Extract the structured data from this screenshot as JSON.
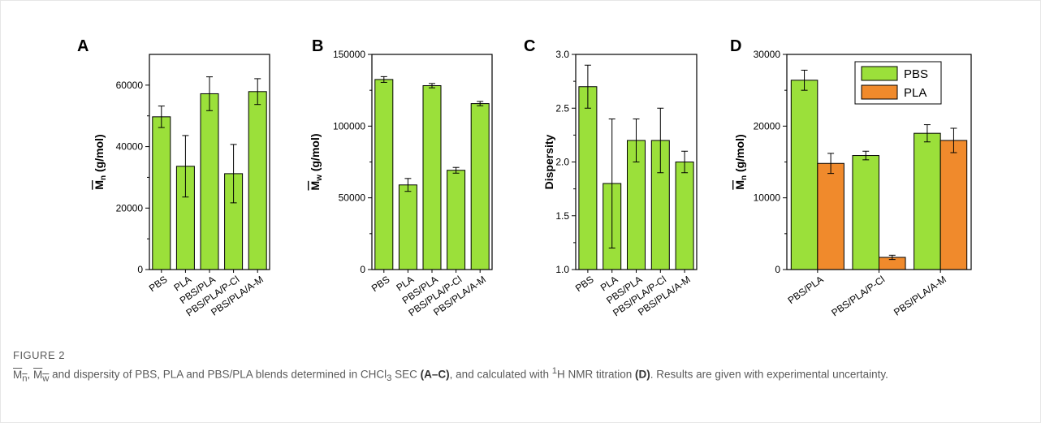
{
  "colors": {
    "pbs": "#9be03a",
    "pla": "#f08a2c",
    "axis": "#000000"
  },
  "chart_data": [
    {
      "panel": "A",
      "type": "bar",
      "ylabel_main": "M",
      "ylabel_sub": "n",
      "ylabel_unit": "(g/mol)",
      "categories": [
        "PBS",
        "PLA",
        "PBS/PLA",
        "PBS/PLA/P-Cl",
        "PBS/PLA/A-M"
      ],
      "ylim": [
        0,
        70000
      ],
      "yticks": [
        0,
        20000,
        40000,
        60000
      ],
      "ytick_labels": [
        "0",
        "20000",
        "40000",
        "60000"
      ],
      "series": [
        {
          "values": [
            49700,
            33600,
            57200,
            31200,
            57900
          ],
          "errors": [
            3500,
            10000,
            5500,
            9500,
            4200
          ]
        }
      ]
    },
    {
      "panel": "B",
      "type": "bar",
      "ylabel_main": "M",
      "ylabel_sub": "w",
      "ylabel_unit": "(g/mol)",
      "categories": [
        "PBS",
        "PLA",
        "PBS/PLA",
        "PBS/PLA/P-Cl",
        "PBS/PLA/A-M"
      ],
      "ylim": [
        0,
        150000
      ],
      "yticks": [
        0,
        50000,
        100000,
        150000
      ],
      "ytick_labels": [
        "0",
        "50000",
        "100000",
        "150000"
      ],
      "series": [
        {
          "values": [
            132500,
            59000,
            128200,
            69200,
            115700
          ],
          "errors": [
            2000,
            4500,
            1500,
            2000,
            1500
          ]
        }
      ]
    },
    {
      "panel": "C",
      "type": "bar",
      "ylabel_main": "Dispersity",
      "categories": [
        "PBS",
        "PLA",
        "PBS/PLA",
        "PBS/PLA/P-Cl",
        "PBS/PLA/A-M"
      ],
      "ylim": [
        1.0,
        3.0
      ],
      "yticks": [
        1.0,
        1.5,
        2.0,
        2.5,
        3.0
      ],
      "ytick_labels": [
        "1.0",
        "1.5",
        "2.0",
        "2.5",
        "3.0"
      ],
      "series": [
        {
          "values": [
            2.7,
            1.8,
            2.2,
            2.2,
            2.0
          ],
          "errors": [
            0.2,
            0.6,
            0.2,
            0.3,
            0.1
          ]
        }
      ]
    },
    {
      "panel": "D",
      "type": "bar",
      "ylabel_main": "M",
      "ylabel_sub": "n",
      "ylabel_unit": "(g/mol)",
      "categories": [
        "PBS/PLA",
        "PBS/PLA/P-Cl",
        "PBS/PLA/A-M"
      ],
      "ylim": [
        0,
        30000
      ],
      "yticks": [
        0,
        10000,
        20000,
        30000
      ],
      "ytick_labels": [
        "0",
        "10000",
        "20000",
        "30000"
      ],
      "legend": "top-right",
      "series": [
        {
          "name": "PBS",
          "values": [
            26400,
            15900,
            19000
          ],
          "errors": [
            1400,
            600,
            1200
          ]
        },
        {
          "name": "PLA",
          "values": [
            14800,
            1700,
            18000
          ],
          "errors": [
            1400,
            300,
            1700
          ]
        }
      ]
    }
  ],
  "caption": {
    "label": "FIGURE 2",
    "mn": "M",
    "mn_sub": "n",
    "sep": ", ",
    "mw": "M",
    "mw_sub": "w",
    "t1": " and dispersity of PBS, PLA and PBS/PLA blends determined in CHCl",
    "t1_sub": "3",
    "t2": " SEC ",
    "b1": "(A–C)",
    "t3": ", and calculated with ",
    "sup1": "1",
    "t4": "H NMR titration ",
    "b2": "(D)",
    "t5": ". Results are given with experimental uncertainty."
  }
}
